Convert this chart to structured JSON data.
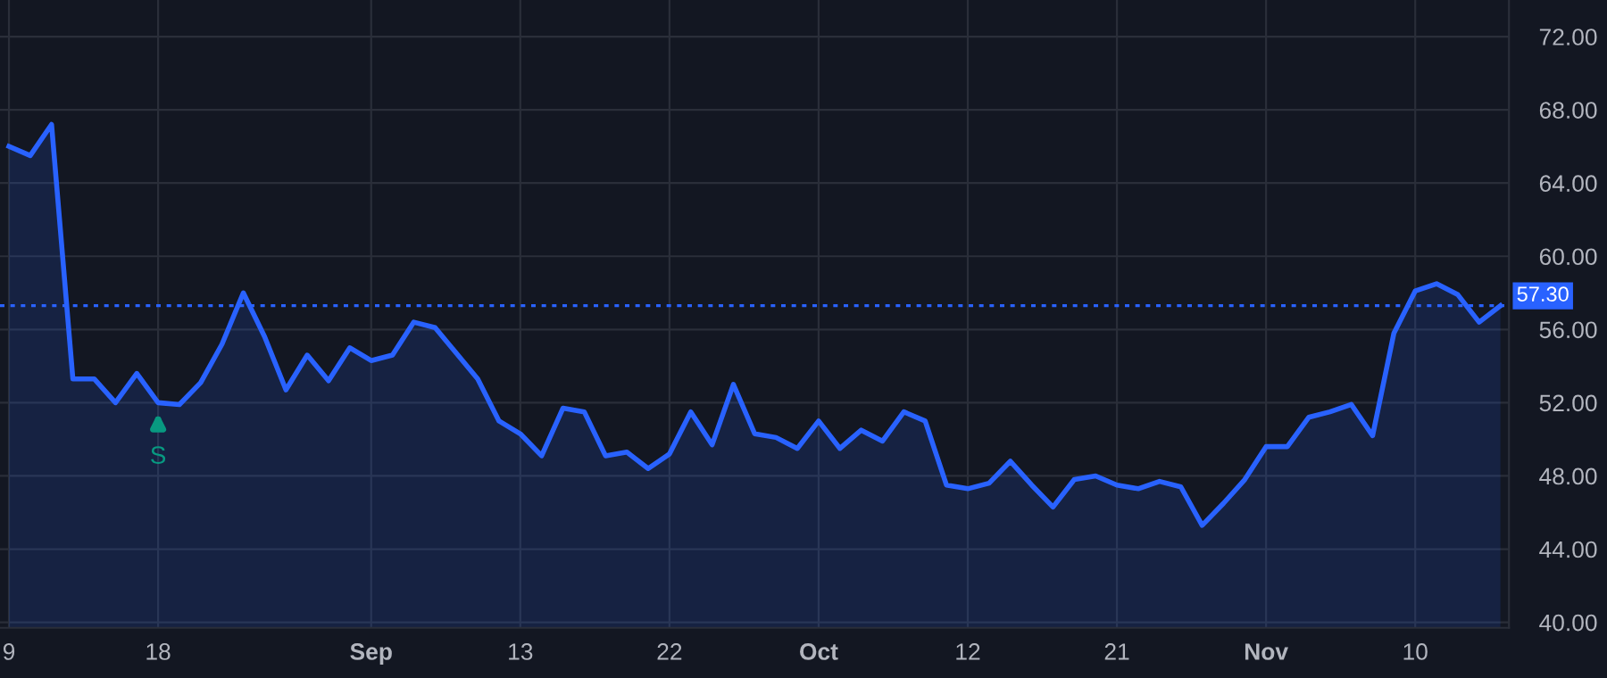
{
  "chart_data": {
    "type": "area",
    "categories": [
      "9",
      null,
      null,
      null,
      null,
      null,
      null,
      "18",
      null,
      null,
      null,
      null,
      null,
      null,
      null,
      null,
      null,
      "Sep",
      null,
      null,
      null,
      null,
      null,
      null,
      "13",
      null,
      null,
      null,
      null,
      null,
      null,
      "22",
      null,
      null,
      null,
      null,
      null,
      null,
      "Oct",
      null,
      null,
      null,
      null,
      null,
      null,
      "12",
      null,
      null,
      null,
      null,
      null,
      null,
      "21",
      null,
      null,
      null,
      null,
      null,
      null,
      "Nov",
      null,
      null,
      null,
      null,
      null,
      null,
      "10",
      null,
      null,
      null,
      null
    ],
    "series": [
      {
        "color": "#2962ff",
        "values": [
          66.0,
          65.5,
          67.2,
          53.3,
          53.3,
          52.0,
          53.6,
          52.0,
          51.9,
          53.1,
          55.2,
          58.0,
          55.6,
          52.7,
          54.6,
          53.2,
          55.0,
          54.3,
          54.6,
          56.4,
          56.1,
          54.7,
          53.3,
          51.0,
          50.3,
          49.1,
          51.7,
          51.5,
          49.1,
          49.3,
          48.4,
          49.2,
          51.5,
          49.7,
          53.0,
          50.3,
          50.1,
          49.5,
          51.0,
          49.5,
          50.5,
          49.9,
          51.5,
          51.0,
          47.5,
          47.3,
          47.6,
          48.8,
          47.5,
          46.3,
          47.8,
          48.0,
          47.5,
          47.3,
          47.7,
          47.4,
          45.3,
          46.5,
          47.8,
          49.6,
          49.6,
          51.2,
          51.5,
          51.9,
          50.2,
          55.8,
          58.1,
          58.5,
          57.9,
          56.4,
          57.3
        ]
      }
    ],
    "ylim": [
      39.7,
      74.0
    ],
    "yticks": [
      {
        "value": 40,
        "label": "40.00"
      },
      {
        "value": 44,
        "label": "44.00"
      },
      {
        "value": 48,
        "label": "48.00"
      },
      {
        "value": 52,
        "label": "52.00"
      },
      {
        "value": 56,
        "label": "56.00"
      },
      {
        "value": 60,
        "label": "60.00"
      },
      {
        "value": 64,
        "label": "64.00"
      },
      {
        "value": 68,
        "label": "68.00"
      },
      {
        "value": 72,
        "label": "72.00"
      }
    ],
    "ref_lines": [
      {
        "axis": "y",
        "value": 57.3,
        "label": "57.30",
        "color": "#2962ff",
        "line_style": "dotted"
      }
    ],
    "annotations": [
      {
        "text": "S",
        "x": "18",
        "y": 52.0
      }
    ],
    "grid": true
  }
}
